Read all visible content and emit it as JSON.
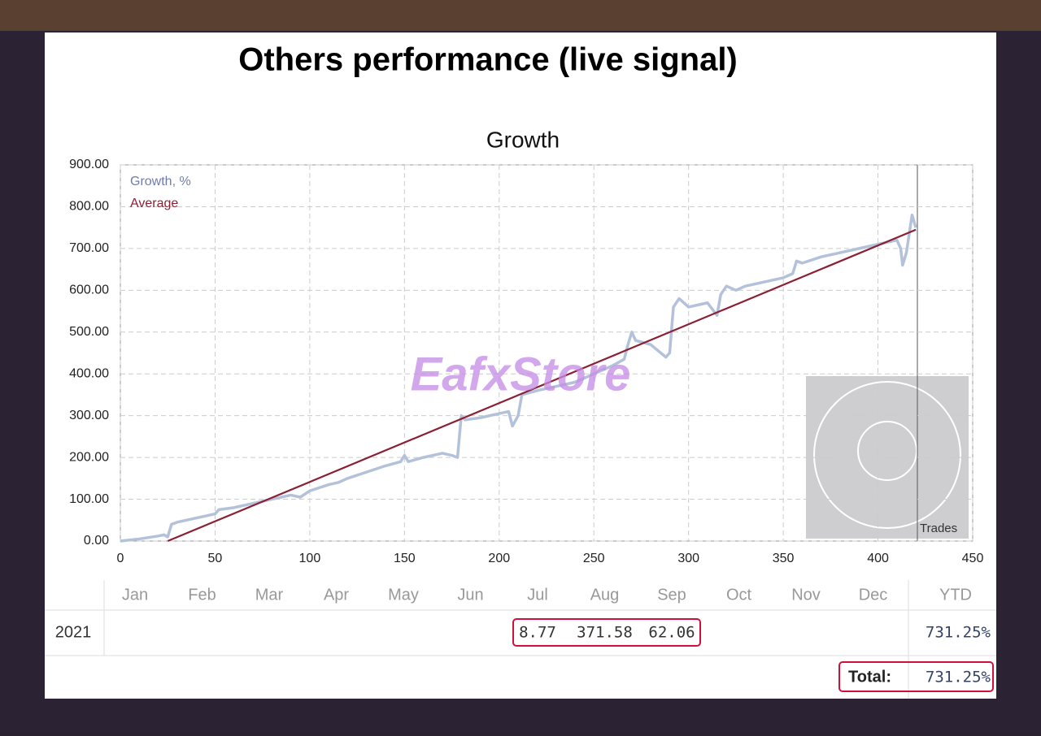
{
  "title": "Others performance (live signal)",
  "watermark": "EafxStore",
  "chart_data": {
    "type": "line",
    "title": "Growth",
    "series": [
      {
        "name": "Growth, %",
        "color": "#b3c2da",
        "legend_color": "#6f7bb0",
        "x": [
          0,
          10,
          20,
          23,
          25,
          27,
          30,
          40,
          50,
          52,
          60,
          70,
          80,
          90,
          95,
          100,
          110,
          115,
          120,
          130,
          140,
          148,
          150,
          152,
          160,
          170,
          175,
          178,
          180,
          182,
          190,
          200,
          205,
          207,
          210,
          212,
          220,
          230,
          240,
          250,
          260,
          266,
          268,
          270,
          272,
          280,
          288,
          290,
          292,
          295,
          300,
          310,
          315,
          317,
          320,
          325,
          330,
          340,
          350,
          355,
          357,
          360,
          370,
          380,
          390,
          400,
          410,
          412,
          413,
          415,
          418,
          420
        ],
        "values": [
          0,
          5,
          12,
          15,
          10,
          40,
          45,
          55,
          65,
          75,
          80,
          90,
          100,
          110,
          105,
          120,
          135,
          140,
          150,
          165,
          180,
          190,
          205,
          190,
          200,
          210,
          205,
          200,
          300,
          290,
          295,
          305,
          310,
          275,
          300,
          350,
          360,
          370,
          380,
          400,
          420,
          435,
          470,
          500,
          480,
          470,
          440,
          450,
          560,
          580,
          560,
          570,
          540,
          590,
          610,
          600,
          610,
          620,
          630,
          640,
          670,
          665,
          680,
          690,
          700,
          710,
          720,
          700,
          660,
          690,
          780,
          750
        ]
      },
      {
        "name": "Average",
        "color": "#8b2035",
        "legend_color": "#8b2035",
        "x": [
          25,
          420
        ],
        "values": [
          0,
          745
        ]
      }
    ],
    "xlim": [
      0,
      450
    ],
    "xticks": [
      0,
      50,
      100,
      150,
      200,
      250,
      300,
      350,
      400,
      450
    ],
    "ylim": [
      0,
      900
    ],
    "yticks": [
      {
        "value": 0,
        "label": "0.00"
      },
      {
        "value": 100,
        "label": "100.00"
      },
      {
        "value": 200,
        "label": "200.00"
      },
      {
        "value": 300,
        "label": "300.00"
      },
      {
        "value": 400,
        "label": "400.00"
      },
      {
        "value": 500,
        "label": "500.00"
      },
      {
        "value": 600,
        "label": "600.00"
      },
      {
        "value": 700,
        "label": "700.00"
      },
      {
        "value": 800,
        "label": "800.00"
      },
      {
        "value": 900,
        "label": "900.00"
      }
    ],
    "grid": true,
    "trades_label": "Trades"
  },
  "table": {
    "months": [
      "Jan",
      "Feb",
      "Mar",
      "Apr",
      "May",
      "Jun",
      "Jul",
      "Aug",
      "Sep",
      "Oct",
      "Nov",
      "Dec"
    ],
    "ytd_header": "YTD",
    "rows": [
      {
        "year": "2021",
        "values": [
          null,
          null,
          null,
          null,
          null,
          null,
          "8.77",
          "371.58",
          "62.06",
          null,
          null,
          null
        ],
        "ytd": "731.25%"
      }
    ],
    "total_label": "Total:",
    "total": "731.25%"
  }
}
